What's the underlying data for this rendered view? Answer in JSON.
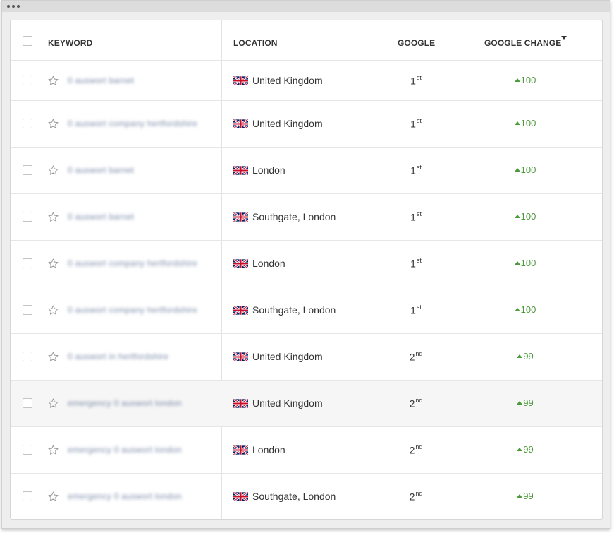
{
  "table": {
    "headers": {
      "keyword": "KEYWORD",
      "location": "LOCATION",
      "google": "GOOGLE",
      "google_change": "GOOGLE CHANGE"
    },
    "rows": [
      {
        "keyword": "0 auswort barnet",
        "location": "United Kingdom",
        "rank": "1",
        "suffix": "st",
        "change": "100",
        "highlighted": false
      },
      {
        "keyword": "0 auswort company hertfordshire",
        "location": "United Kingdom",
        "rank": "1",
        "suffix": "st",
        "change": "100",
        "highlighted": false
      },
      {
        "keyword": "0 auswort barnet",
        "location": "London",
        "rank": "1",
        "suffix": "st",
        "change": "100",
        "highlighted": false
      },
      {
        "keyword": "0 auswort barnet",
        "location": "Southgate, London",
        "rank": "1",
        "suffix": "st",
        "change": "100",
        "highlighted": false
      },
      {
        "keyword": "0 auswort company hertfordshire",
        "location": "London",
        "rank": "1",
        "suffix": "st",
        "change": "100",
        "highlighted": false
      },
      {
        "keyword": "0 auswort company hertfordshire",
        "location": "Southgate, London",
        "rank": "1",
        "suffix": "st",
        "change": "100",
        "highlighted": false
      },
      {
        "keyword": "0 auswort in hertfordshire",
        "location": "United Kingdom",
        "rank": "2",
        "suffix": "nd",
        "change": "99",
        "highlighted": false
      },
      {
        "keyword": "emergency 0 auswort london",
        "location": "United Kingdom",
        "rank": "2",
        "suffix": "nd",
        "change": "99",
        "highlighted": true
      },
      {
        "keyword": "emergency 0 auswort london",
        "location": "London",
        "rank": "2",
        "suffix": "nd",
        "change": "99",
        "highlighted": false
      },
      {
        "keyword": "emergency 0 auswort london",
        "location": "Southgate, London",
        "rank": "2",
        "suffix": "nd",
        "change": "99",
        "highlighted": false
      }
    ]
  },
  "colors": {
    "positive_change": "#4c9a3c",
    "highlight_row": "#f6f6f6"
  },
  "icons": {
    "row_icon": "star-icon",
    "flag": "uk-flag-icon",
    "sort": "sort-desc-icon",
    "trend": "arrow-up-icon"
  }
}
